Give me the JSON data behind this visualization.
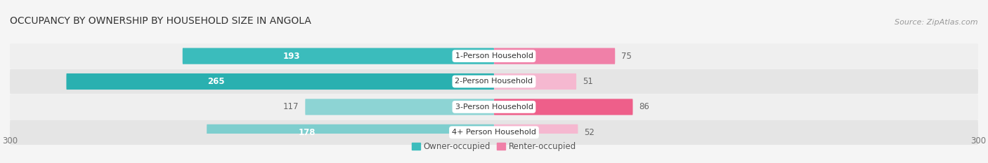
{
  "title": "OCCUPANCY BY OWNERSHIP BY HOUSEHOLD SIZE IN ANGOLA",
  "source": "Source: ZipAtlas.com",
  "categories": [
    "1-Person Household",
    "2-Person Household",
    "3-Person Household",
    "4+ Person Household"
  ],
  "owner_values": [
    193,
    265,
    117,
    178
  ],
  "renter_values": [
    75,
    51,
    86,
    52
  ],
  "owner_colors": [
    "#3bbcbc",
    "#2ab0b0",
    "#8dd4d4",
    "#7ecece"
  ],
  "renter_colors": [
    "#f080a8",
    "#f5b8d0",
    "#ee5f8a",
    "#f5b8d0"
  ],
  "row_bg_colors": [
    "#efefef",
    "#e5e5e5"
  ],
  "max_val": 300,
  "label_color_in": "#ffffff",
  "label_color_out": "#666666",
  "title_fontsize": 10,
  "source_fontsize": 8,
  "bar_label_fontsize": 8.5,
  "category_fontsize": 8,
  "legend_fontsize": 8.5,
  "axis_label_fontsize": 8.5,
  "figsize": [
    14.06,
    2.33
  ],
  "dpi": 100
}
